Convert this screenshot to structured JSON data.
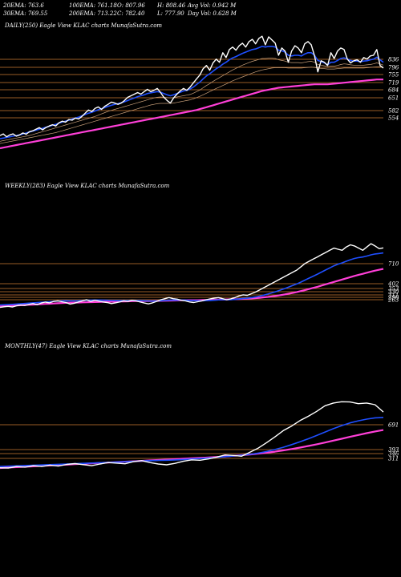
{
  "header": {
    "stats": [
      [
        "20EMA: 763.6",
        "100EMA: 761.18",
        "O: 807.96",
        "H: 808.46",
        "Avg Vol: 0.942  M"
      ],
      [
        "30EMA: 769.55",
        "200EMA: 713.22",
        "C: 782.40",
        "L: 777.90",
        "Day Vol: 0.628  M"
      ]
    ]
  },
  "colors": {
    "background": "#000000",
    "price": "#ffffff",
    "ema_fast": "#1f4fff",
    "ema_slow": "#ff3fd8",
    "levels": "#cc7a33",
    "minor_emas": "#c9a07a"
  },
  "chart_data": [
    {
      "type": "line",
      "panel_label": "DAILY(250) Eagle   View  KLAC charts MunafaSutra.com",
      "level_ticks": [
        "836",
        "796",
        "755",
        "719",
        "684",
        "651",
        "582",
        "554"
      ],
      "grid": false,
      "series": [
        {
          "role": "price",
          "values": [
            570,
            575,
            566,
            572,
            575,
            568,
            572,
            578,
            574,
            582,
            585,
            590,
            595,
            588,
            595,
            600,
            604,
            600,
            610,
            615,
            612,
            620,
            618,
            625,
            622,
            630,
            640,
            650,
            645,
            655,
            660,
            652,
            662,
            668,
            675,
            672,
            668,
            672,
            680,
            690,
            695,
            700,
            705,
            700,
            708,
            715,
            708,
            712,
            718,
            705,
            690,
            680,
            672,
            688,
            700,
            710,
            718,
            712,
            722,
            735,
            748,
            760,
            780,
            790,
            775,
            798,
            810,
            800,
            830,
            815,
            840,
            848,
            838,
            852,
            860,
            848,
            865,
            872,
            858,
            875,
            882,
            855,
            880,
            870,
            860,
            822,
            845,
            835,
            800,
            835,
            852,
            845,
            830,
            858,
            865,
            855,
            820,
            770,
            805,
            800,
            790,
            830,
            812,
            835,
            845,
            840,
            810,
            798,
            805,
            808,
            800,
            815,
            810,
            820,
            822,
            840,
            790,
            782
          ]
        },
        {
          "role": "ema-fast",
          "values": [
            560,
            562,
            564,
            566,
            568,
            570,
            572,
            575,
            578,
            581,
            584,
            587,
            590,
            593,
            596,
            599,
            602,
            605,
            609,
            612,
            615,
            618,
            622,
            625,
            628,
            632,
            636,
            640,
            643,
            647,
            651,
            654,
            658,
            662,
            665,
            668,
            670,
            673,
            676,
            680,
            684,
            688,
            692,
            695,
            698,
            702,
            704,
            706,
            708,
            706,
            702,
            698,
            695,
            698,
            702,
            706,
            710,
            712,
            716,
            722,
            730,
            738,
            748,
            757,
            764,
            772,
            780,
            786,
            794,
            800,
            808,
            814,
            818,
            823,
            828,
            832,
            836,
            840,
            842,
            846,
            850,
            848,
            850,
            850,
            848,
            838,
            836,
            832,
            822,
            820,
            822,
            822,
            820,
            826,
            830,
            830,
            822,
            806,
            802,
            798,
            792,
            800,
            800,
            806,
            812,
            814,
            810,
            806,
            804,
            804,
            802,
            804,
            805,
            808,
            810,
            816,
            808,
            800
          ]
        },
        {
          "role": "ema-slow",
          "values": [
            530,
            532,
            534,
            536,
            538,
            540,
            542,
            544,
            546,
            548,
            550,
            552,
            554,
            556,
            558,
            560,
            562,
            564,
            566,
            568,
            570,
            572,
            574,
            576,
            578,
            580,
            582,
            584,
            586,
            588,
            590,
            592,
            594,
            596,
            598,
            600,
            602,
            604,
            606,
            608,
            610,
            612,
            614,
            616,
            618,
            620,
            622,
            624,
            626,
            628,
            630,
            632,
            634,
            636,
            638,
            640,
            642,
            644,
            646,
            648,
            650,
            653,
            656,
            659,
            662,
            665,
            668,
            671,
            674,
            677,
            680,
            683,
            686,
            689,
            692,
            695,
            698,
            701,
            704,
            707,
            710,
            712,
            714,
            716,
            718,
            720,
            721,
            722,
            723,
            724,
            725,
            726,
            727,
            728,
            729,
            730,
            731,
            731,
            731,
            731,
            731,
            732,
            733,
            734,
            735,
            736,
            737,
            738,
            739,
            740,
            741,
            742,
            743,
            744,
            745,
            746,
            746,
            746
          ]
        },
        {
          "role": "ema-mid",
          "values": [
            545,
            547,
            549,
            551,
            553,
            555,
            557,
            559,
            561,
            563,
            565,
            567,
            569,
            571,
            573,
            575,
            577,
            579,
            582,
            585,
            588,
            591,
            594,
            597,
            600,
            603,
            606,
            609,
            612,
            615,
            618,
            621,
            624,
            627,
            630,
            633,
            636,
            639,
            642,
            645,
            648,
            651,
            654,
            657,
            660,
            663,
            666,
            668,
            670,
            671,
            671,
            671,
            671,
            672,
            674,
            676,
            678,
            680,
            682,
            685,
            689,
            693,
            698,
            703,
            708,
            713,
            718,
            722,
            727,
            732,
            737,
            742,
            746,
            750,
            754,
            758,
            762,
            766,
            770,
            773,
            776,
            778,
            780,
            782,
            783,
            783,
            783,
            783,
            782,
            782,
            782,
            782,
            782,
            783,
            784,
            785,
            784,
            782,
            781,
            780,
            779,
            779,
            779,
            780,
            781,
            782,
            782,
            782,
            782,
            782,
            782,
            782,
            783,
            784,
            785,
            786,
            786,
            785
          ]
        },
        {
          "role": "ema-minor",
          "values": [
            552,
            554,
            556,
            558,
            560,
            562,
            564,
            566,
            568,
            570,
            573,
            576,
            579,
            582,
            585,
            588,
            591,
            594,
            597,
            600,
            603,
            606,
            609,
            612,
            615,
            618,
            621,
            624,
            627,
            630,
            634,
            638,
            642,
            646,
            649,
            652,
            655,
            658,
            661,
            664,
            667,
            670,
            673,
            676,
            679,
            682,
            685,
            688,
            690,
            691,
            690,
            689,
            688,
            689,
            691,
            693,
            695,
            697,
            699,
            703,
            708,
            713,
            720,
            727,
            733,
            740,
            746,
            752,
            758,
            764,
            770,
            776,
            781,
            786,
            791,
            795,
            799,
            803,
            806,
            809,
            812,
            812,
            813,
            813,
            812,
            808,
            806,
            804,
            800,
            799,
            799,
            799,
            798,
            800,
            802,
            803,
            800,
            793,
            791,
            789,
            786,
            788,
            788,
            790,
            793,
            795,
            794,
            792,
            791,
            791,
            790,
            791,
            792,
            793,
            795,
            798,
            795,
            791
          ]
        }
      ]
    },
    {
      "type": "line",
      "panel_label": "WEEKLY(283) Eagle   View  KLAC charts MunafaSutra.com",
      "level_ticks": [
        "710",
        "402",
        "353",
        "330",
        "311",
        "290",
        "263"
      ],
      "grid": false,
      "series": [
        {
          "role": "price",
          "values": [
            240,
            246,
            250,
            244,
            255,
            262,
            258,
            268,
            275,
            265,
            280,
            288,
            282,
            295,
            300,
            292,
            285,
            270,
            278,
            290,
            300,
            310,
            295,
            305,
            298,
            290,
            285,
            275,
            282,
            290,
            300,
            295,
            305,
            300,
            290,
            280,
            272,
            282,
            295,
            310,
            320,
            330,
            320,
            315,
            305,
            300,
            290,
            285,
            292,
            300,
            310,
            318,
            325,
            330,
            320,
            310,
            318,
            330,
            345,
            355,
            350,
            365,
            380,
            400,
            420,
            440,
            460,
            480,
            500,
            520,
            540,
            560,
            580,
            610,
            640,
            660,
            680,
            700,
            720,
            740,
            760,
            780,
            770,
            760,
            790,
            810,
            800,
            780,
            760,
            790,
            820,
            800,
            775,
            782
          ]
        },
        {
          "role": "ema-fast",
          "values": [
            262,
            264,
            266,
            268,
            271,
            274,
            276,
            279,
            282,
            284,
            287,
            290,
            292,
            295,
            298,
            300,
            301,
            300,
            300,
            301,
            303,
            305,
            306,
            307,
            307,
            306,
            305,
            303,
            302,
            302,
            303,
            303,
            304,
            304,
            303,
            301,
            299,
            298,
            299,
            301,
            303,
            306,
            307,
            308,
            307,
            306,
            304,
            302,
            301,
            301,
            302,
            304,
            306,
            309,
            310,
            310,
            311,
            313,
            317,
            321,
            324,
            329,
            335,
            343,
            352,
            362,
            373,
            385,
            398,
            411,
            425,
            439,
            454,
            471,
            489,
            507,
            525,
            543,
            562,
            581,
            600,
            619,
            634,
            646,
            660,
            674,
            686,
            694,
            699,
            708,
            719,
            727,
            731,
            736
          ]
        },
        {
          "role": "ema-slow",
          "values": [
            250,
            252,
            254,
            256,
            258,
            260,
            262,
            264,
            266,
            268,
            270,
            272,
            274,
            276,
            278,
            280,
            282,
            283,
            284,
            285,
            286,
            287,
            288,
            289,
            290,
            291,
            292,
            292,
            293,
            294,
            295,
            296,
            297,
            298,
            298,
            298,
            298,
            298,
            299,
            300,
            301,
            302,
            303,
            304,
            305,
            306,
            306,
            306,
            306,
            307,
            308,
            309,
            310,
            311,
            312,
            313,
            314,
            315,
            316,
            318,
            320,
            322,
            325,
            328,
            332,
            336,
            341,
            346,
            352,
            358,
            365,
            372,
            380,
            389,
            398,
            408,
            418,
            428,
            439,
            450,
            461,
            472,
            483,
            494,
            505,
            516,
            527,
            537,
            546,
            556,
            566,
            575,
            583,
            591
          ]
        }
      ]
    },
    {
      "type": "line",
      "panel_label": "MONTHLY(47) Eagle   View  KLAC charts MunafaSutra.com",
      "level_ticks": [
        "691",
        "393",
        "346",
        "311"
      ],
      "grid": false,
      "series": [
        {
          "role": "price",
          "values": [
            250,
            248,
            262,
            256,
            270,
            262,
            275,
            266,
            282,
            290,
            280,
            270,
            286,
            300,
            294,
            288,
            308,
            318,
            300,
            286,
            278,
            292,
            312,
            326,
            322,
            334,
            352,
            372,
            368,
            360,
            398,
            438,
            490,
            545,
            605,
            648,
            700,
            742,
            788,
            842,
            868,
            880,
            878,
            862,
            868,
            852,
            782
          ]
        },
        {
          "role": "ema-fast",
          "values": [
            262,
            265,
            268,
            271,
            274,
            277,
            280,
            283,
            286,
            289,
            292,
            295,
            298,
            301,
            304,
            307,
            311,
            315,
            318,
            320,
            322,
            325,
            329,
            334,
            338,
            343,
            349,
            356,
            363,
            369,
            378,
            390,
            405,
            424,
            446,
            471,
            498,
            527,
            558,
            591,
            623,
            652,
            678,
            698,
            714,
            726,
            730
          ]
        },
        {
          "role": "ema-slow",
          "values": [
            248,
            252,
            256,
            260,
            264,
            268,
            272,
            276,
            280,
            284,
            288,
            292,
            296,
            300,
            304,
            308,
            312,
            316,
            320,
            324,
            328,
            332,
            336,
            340,
            344,
            348,
            353,
            358,
            364,
            370,
            377,
            385,
            394,
            404,
            416,
            429,
            443,
            458,
            474,
            491,
            509,
            527,
            545,
            563,
            580,
            596,
            610
          ]
        }
      ]
    }
  ]
}
